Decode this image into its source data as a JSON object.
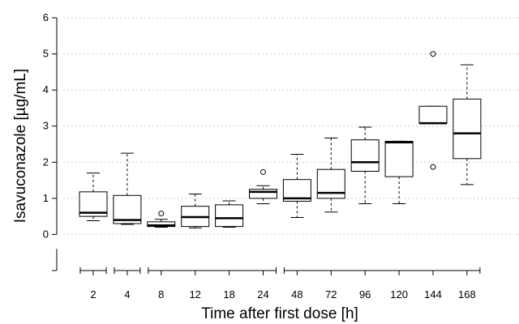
{
  "chart_data": {
    "type": "boxplot",
    "title": "",
    "xlabel": "Time after first dose [h]",
    "ylabel": "Isavuconazole [µg/mL]",
    "ylim": [
      -1,
      6
    ],
    "y_ticks": [
      0,
      1,
      2,
      3,
      4,
      5,
      6
    ],
    "grid": true,
    "categories": [
      "2",
      "4",
      "8",
      "12",
      "18",
      "24",
      "48",
      "72",
      "96",
      "120",
      "144",
      "168"
    ],
    "boxes": [
      {
        "category": "2",
        "min": 0.38,
        "q1": 0.5,
        "median": 0.6,
        "q3": 1.18,
        "max": 1.7,
        "outliers": []
      },
      {
        "category": "4",
        "min": 0.28,
        "q1": 0.3,
        "median": 0.4,
        "q3": 1.08,
        "max": 2.25,
        "outliers": []
      },
      {
        "category": "8",
        "min": 0.2,
        "q1": 0.22,
        "median": 0.25,
        "q3": 0.35,
        "max": 0.42,
        "outliers": [
          0.58
        ]
      },
      {
        "category": "12",
        "min": 0.18,
        "q1": 0.22,
        "median": 0.48,
        "q3": 0.78,
        "max": 1.12,
        "outliers": []
      },
      {
        "category": "18",
        "min": 0.2,
        "q1": 0.22,
        "median": 0.45,
        "q3": 0.82,
        "max": 0.93,
        "outliers": []
      },
      {
        "category": "24",
        "min": 0.85,
        "q1": 1.0,
        "median": 1.18,
        "q3": 1.25,
        "max": 1.35,
        "outliers": [
          1.73
        ]
      },
      {
        "category": "48",
        "min": 0.47,
        "q1": 0.92,
        "median": 1.0,
        "q3": 1.52,
        "max": 2.22,
        "outliers": []
      },
      {
        "category": "72",
        "min": 0.62,
        "q1": 1.0,
        "median": 1.15,
        "q3": 1.8,
        "max": 2.67,
        "outliers": []
      },
      {
        "category": "96",
        "min": 0.85,
        "q1": 1.75,
        "median": 2.0,
        "q3": 2.62,
        "max": 2.97,
        "outliers": []
      },
      {
        "category": "120",
        "min": 0.85,
        "q1": 1.6,
        "median": 2.55,
        "q3": 2.58,
        "max": 2.58,
        "outliers": []
      },
      {
        "category": "144",
        "min": 3.08,
        "q1": 3.08,
        "median": 3.08,
        "q3": 3.55,
        "max": 3.55,
        "outliers": [
          5.0,
          1.87
        ]
      },
      {
        "category": "168",
        "min": 1.38,
        "q1": 2.1,
        "median": 2.8,
        "q3": 3.75,
        "max": 4.7,
        "outliers": []
      }
    ],
    "axis_breaks_after": [
      "2",
      "4",
      "24"
    ]
  }
}
